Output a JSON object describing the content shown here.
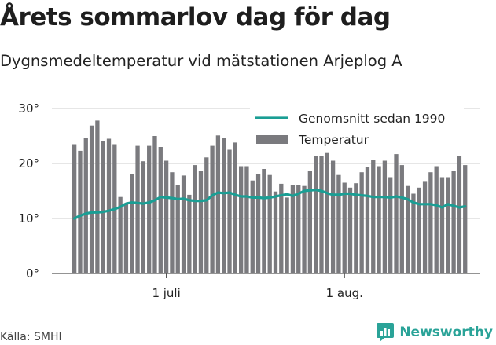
{
  "header": {
    "title": "Årets sommarlov dag för dag",
    "subtitle": "Dygnsmedeltemperatur vid mätstationen Arjeplog A"
  },
  "footer": {
    "source": "Källa: SMHI",
    "brand": "Newsworthy"
  },
  "colors": {
    "bars": "#7a7a7e",
    "average_line": "#1a9e94",
    "brand": "#2aa398",
    "gridlines": "#cccccc"
  },
  "chart_data": {
    "type": "bar",
    "title": "Årets sommarlov dag för dag",
    "subtitle": "Dygnsmedeltemperatur vid mätstationen Arjeplog A",
    "xlabel": "",
    "ylabel": "",
    "x_tick_labels": [
      "1 juli",
      "1 aug."
    ],
    "x_tick_day_index": [
      16,
      47
    ],
    "y_ticks": [
      0,
      10,
      20,
      30
    ],
    "y_tick_labels": [
      "0°",
      "10°",
      "20°",
      "30°"
    ],
    "ylim": [
      0,
      31
    ],
    "grid": true,
    "legend_position": "top-right",
    "series": [
      {
        "name": "Temperatur",
        "type": "bar",
        "values": [
          23.5,
          22.3,
          24.6,
          26.9,
          27.8,
          24.1,
          24.5,
          23.5,
          13.9,
          12.8,
          18.0,
          23.2,
          20.4,
          23.2,
          25.0,
          23.0,
          20.5,
          18.4,
          16.1,
          17.8,
          14.3,
          19.7,
          18.6,
          21.1,
          23.2,
          25.1,
          24.6,
          22.5,
          23.8,
          19.5,
          19.5,
          16.9,
          18.0,
          19.0,
          17.9,
          14.9,
          16.3,
          13.8,
          16.1,
          16.1,
          15.9,
          18.7,
          21.3,
          21.4,
          21.9,
          20.5,
          17.9,
          16.5,
          15.6,
          16.4,
          18.4,
          19.3,
          20.7,
          19.5,
          20.5,
          17.5,
          21.7,
          19.7,
          15.9,
          14.5,
          15.6,
          16.8,
          18.4,
          19.5,
          17.5,
          17.5,
          18.7,
          21.3,
          19.7
        ]
      },
      {
        "name": "Genomsnitt sedan 1990",
        "type": "line",
        "values": [
          10.0,
          10.5,
          10.9,
          11.1,
          11.1,
          11.2,
          11.4,
          11.7,
          12.1,
          12.7,
          12.9,
          12.8,
          12.7,
          12.9,
          13.3,
          13.9,
          13.8,
          13.7,
          13.5,
          13.6,
          13.3,
          13.2,
          13.2,
          13.3,
          14.2,
          14.7,
          14.6,
          14.7,
          14.3,
          14.0,
          14.0,
          13.8,
          13.8,
          13.7,
          13.8,
          14.0,
          14.2,
          14.4,
          14.1,
          14.5,
          15.0,
          15.1,
          15.2,
          15.0,
          14.6,
          14.3,
          14.3,
          14.5,
          14.5,
          14.3,
          14.2,
          14.1,
          13.9,
          13.9,
          13.9,
          13.8,
          14.0,
          13.8,
          13.5,
          12.9,
          12.6,
          12.6,
          12.6,
          12.4,
          12.0,
          12.6,
          12.3,
          12.0,
          12.2
        ]
      }
    ]
  }
}
